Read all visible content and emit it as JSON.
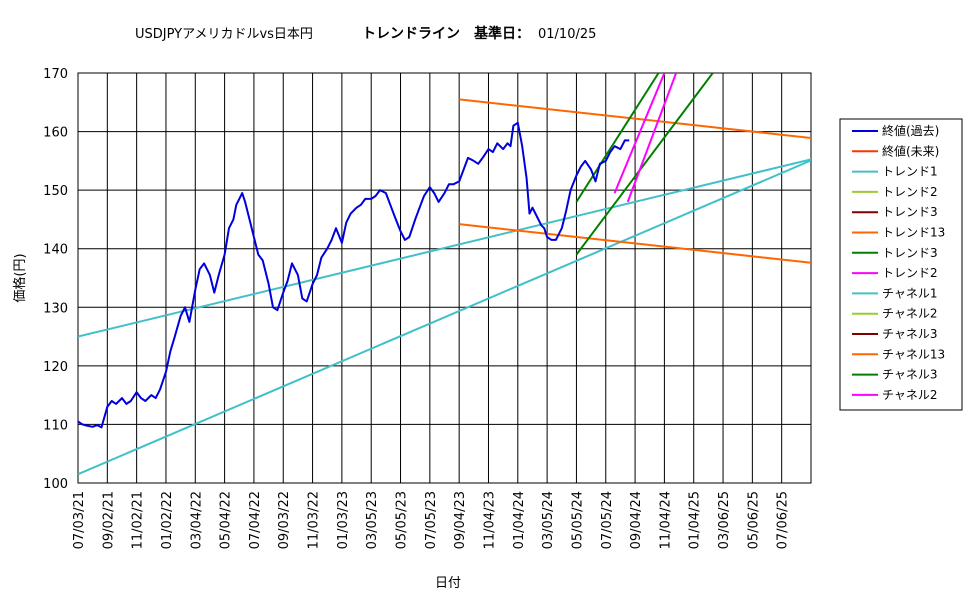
{
  "chart_data": {
    "type": "line",
    "title": {
      "symbol": "USDJPYアメリカドルvs日本円",
      "label": "トレンドライン",
      "base_label": "基準日：",
      "base_date": "01/10/25"
    },
    "xlabel": "日付",
    "ylabel": "価格(円)",
    "ylim": [
      100,
      170
    ],
    "yticks": [
      "100",
      "110",
      "120",
      "130",
      "140",
      "150",
      "160",
      "170"
    ],
    "xticks": [
      "07/03/21",
      "09/02/21",
      "11/02/21",
      "01/02/22",
      "03/04/22",
      "05/04/22",
      "07/04/22",
      "09/03/22",
      "11/03/22",
      "01/03/23",
      "03/05/23",
      "05/05/23",
      "07/05/23",
      "09/04/23",
      "11/04/23",
      "01/04/24",
      "03/05/24",
      "05/05/24",
      "07/05/24",
      "09/04/24",
      "11/04/24",
      "01/04/25",
      "03/06/25",
      "05/06/25",
      "07/06/25"
    ],
    "grid": true,
    "legend_position": "right",
    "colors": {
      "close": "#0000dd",
      "future": "#ff3300",
      "cyan": "#40c0c8",
      "yellowgreen": "#99cc33",
      "darkred": "#800000",
      "orange": "#ff6600",
      "green": "#008000",
      "magenta": "#ff00ff"
    },
    "legend": [
      {
        "name": "終値(過去)",
        "color": "#0000dd"
      },
      {
        "name": "終値(未来)",
        "color": "#ff3300"
      },
      {
        "name": "トレンド1",
        "color": "#40c0c8"
      },
      {
        "name": "トレンド2",
        "color": "#99cc33"
      },
      {
        "name": "トレンド3",
        "color": "#800000"
      },
      {
        "name": "トレンド13",
        "color": "#ff6600"
      },
      {
        "name": "トレンド3",
        "color": "#008000"
      },
      {
        "name": "トレンド2",
        "color": "#ff00ff"
      },
      {
        "name": "チャネル1",
        "color": "#40c0c8"
      },
      {
        "name": "チャネル2",
        "color": "#99cc33"
      },
      {
        "name": "チャネル3",
        "color": "#800000"
      },
      {
        "name": "チャネル13",
        "color": "#ff6600"
      },
      {
        "name": "チャネル3",
        "color": "#008000"
      },
      {
        "name": "チャネル2",
        "color": "#ff00ff"
      }
    ],
    "close_series": [
      [
        0,
        110.5
      ],
      [
        0.3,
        110.0
      ],
      [
        0.6,
        109.8
      ],
      [
        1.0,
        109.6
      ],
      [
        1.3,
        109.9
      ],
      [
        1.6,
        109.5
      ],
      [
        2.0,
        113.0
      ],
      [
        2.3,
        114.0
      ],
      [
        2.6,
        113.5
      ],
      [
        3.0,
        114.5
      ],
      [
        3.3,
        113.5
      ],
      [
        3.6,
        114.0
      ],
      [
        4.0,
        115.5
      ],
      [
        4.3,
        114.5
      ],
      [
        4.6,
        114.0
      ],
      [
        5.0,
        115.0
      ],
      [
        5.3,
        114.5
      ],
      [
        5.6,
        116.0
      ],
      [
        6.0,
        119.0
      ],
      [
        6.3,
        122.5
      ],
      [
        6.6,
        125.0
      ],
      [
        7.0,
        128.5
      ],
      [
        7.3,
        130.0
      ],
      [
        7.6,
        127.5
      ],
      [
        8.0,
        133.0
      ],
      [
        8.3,
        136.5
      ],
      [
        8.6,
        137.5
      ],
      [
        9.0,
        135.5
      ],
      [
        9.3,
        132.5
      ],
      [
        9.6,
        135.5
      ],
      [
        10.0,
        139.0
      ],
      [
        10.3,
        143.5
      ],
      [
        10.6,
        145.0
      ],
      [
        10.8,
        147.5
      ],
      [
        11.0,
        148.5
      ],
      [
        11.2,
        149.5
      ],
      [
        11.4,
        148.0
      ],
      [
        11.7,
        145.0
      ],
      [
        12.0,
        142.0
      ],
      [
        12.3,
        139.0
      ],
      [
        12.6,
        138.0
      ],
      [
        13.0,
        134.0
      ],
      [
        13.3,
        130.0
      ],
      [
        13.6,
        129.5
      ],
      [
        14.0,
        132.5
      ],
      [
        14.3,
        134.5
      ],
      [
        14.6,
        137.5
      ],
      [
        15.0,
        135.5
      ],
      [
        15.3,
        131.5
      ],
      [
        15.6,
        131.0
      ],
      [
        16.0,
        134.0
      ],
      [
        16.3,
        135.5
      ],
      [
        16.6,
        138.5
      ],
      [
        17.0,
        140.0
      ],
      [
        17.3,
        141.5
      ],
      [
        17.6,
        143.5
      ],
      [
        18.0,
        141.0
      ],
      [
        18.3,
        144.5
      ],
      [
        18.6,
        146.0
      ],
      [
        19.0,
        147.0
      ],
      [
        19.3,
        147.5
      ],
      [
        19.6,
        148.5
      ],
      [
        20.0,
        148.5
      ],
      [
        20.3,
        149.0
      ],
      [
        20.6,
        150.0
      ],
      [
        21.0,
        149.5
      ],
      [
        21.3,
        147.5
      ],
      [
        21.6,
        145.5
      ],
      [
        22.0,
        143.0
      ],
      [
        22.3,
        141.5
      ],
      [
        22.6,
        142.0
      ],
      [
        23.0,
        145.0
      ],
      [
        23.3,
        147.0
      ],
      [
        23.6,
        149.0
      ],
      [
        24.0,
        150.5
      ],
      [
        24.3,
        149.5
      ],
      [
        24.6,
        148.0
      ],
      [
        25.0,
        149.5
      ],
      [
        25.3,
        151.0
      ],
      [
        25.6,
        151.0
      ],
      [
        26.0,
        151.5
      ],
      [
        26.3,
        153.5
      ],
      [
        26.6,
        155.5
      ],
      [
        27.0,
        155.0
      ],
      [
        27.3,
        154.5
      ],
      [
        27.6,
        155.5
      ],
      [
        28.0,
        157.0
      ],
      [
        28.3,
        156.5
      ],
      [
        28.6,
        158.0
      ],
      [
        29.0,
        157.0
      ],
      [
        29.3,
        158.0
      ],
      [
        29.5,
        157.5
      ],
      [
        29.7,
        161.0
      ],
      [
        30.0,
        161.5
      ],
      [
        30.3,
        157.5
      ],
      [
        30.6,
        152.0
      ],
      [
        30.8,
        146.0
      ],
      [
        31.0,
        147.0
      ],
      [
        31.3,
        145.5
      ],
      [
        31.6,
        144.0
      ],
      [
        31.8,
        143.5
      ],
      [
        32.0,
        142.0
      ],
      [
        32.3,
        141.5
      ],
      [
        32.6,
        141.5
      ],
      [
        33.0,
        143.5
      ],
      [
        33.3,
        146.5
      ],
      [
        33.6,
        150.0
      ],
      [
        34.0,
        152.5
      ],
      [
        34.3,
        154.0
      ],
      [
        34.6,
        155.0
      ],
      [
        35.0,
        153.5
      ],
      [
        35.3,
        151.5
      ],
      [
        35.6,
        154.5
      ],
      [
        36.0,
        155.0
      ],
      [
        36.3,
        156.5
      ],
      [
        36.6,
        157.5
      ],
      [
        37.0,
        157.0
      ],
      [
        37.3,
        158.5
      ],
      [
        37.6,
        158.5
      ]
    ],
    "lines": [
      {
        "color": "#40c0c8",
        "points": [
          [
            0,
            125.0
          ],
          [
            50.4,
            155.5
          ]
        ]
      },
      {
        "color": "#40c0c8",
        "points": [
          [
            0,
            101.5
          ],
          [
            50.4,
            155.5
          ]
        ]
      },
      {
        "color": "#ff6600",
        "points": [
          [
            26.0,
            165.5
          ],
          [
            50.4,
            158.8
          ]
        ]
      },
      {
        "color": "#ff6600",
        "points": [
          [
            26.0,
            144.2
          ],
          [
            50.4,
            137.5
          ]
        ]
      },
      {
        "color": "#008000",
        "points": [
          [
            34.0,
            148.0
          ],
          [
            39.6,
            170.0
          ]
        ]
      },
      {
        "color": "#008000",
        "points": [
          [
            34.0,
            139.0
          ],
          [
            43.3,
            170.0
          ]
        ]
      },
      {
        "color": "#ff00ff",
        "points": [
          [
            36.6,
            149.5
          ],
          [
            40.0,
            170.0
          ]
        ]
      },
      {
        "color": "#ff00ff",
        "points": [
          [
            37.5,
            148.0
          ],
          [
            40.8,
            170.0
          ]
        ]
      }
    ]
  }
}
